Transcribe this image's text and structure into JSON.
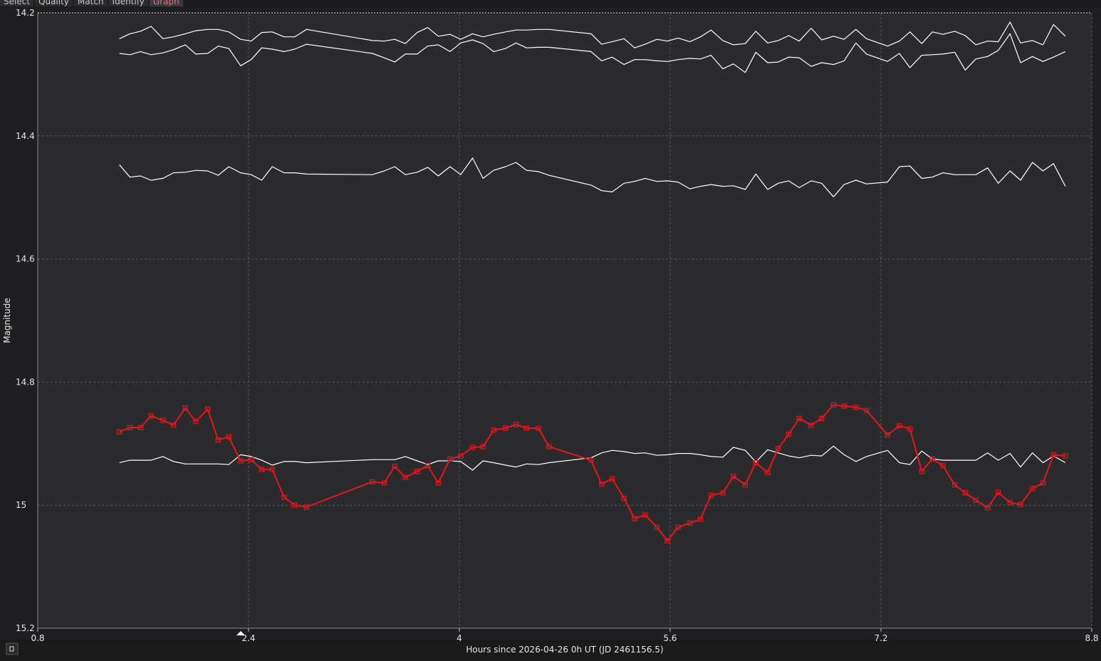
{
  "tabs": [
    "Select",
    "Quality",
    "Match",
    "Identify",
    "Graph"
  ],
  "chart_data": {
    "type": "line",
    "xlabel": "Hours since 2026-04-26 0h UT (JD 2461156.5)",
    "ylabel": "Magnitude",
    "xlim": [
      0.8,
      8.8
    ],
    "xticks": [
      0.8,
      2.4,
      4,
      5.6,
      7.2,
      8.8
    ],
    "ylim": [
      15.2,
      14.2
    ],
    "yticks": [
      14.2,
      14.4,
      14.6,
      14.8,
      15,
      15.2
    ],
    "grid": true,
    "x": [
      1.42,
      1.5,
      1.58,
      1.66,
      1.75,
      1.83,
      1.92,
      2.0,
      2.09,
      2.17,
      2.25,
      2.34,
      2.42,
      2.5,
      2.58,
      2.67,
      2.75,
      2.84,
      3.34,
      3.43,
      3.51,
      3.59,
      3.68,
      3.76,
      3.84,
      3.93,
      4.01,
      4.1,
      4.18,
      4.26,
      4.35,
      4.43,
      4.51,
      4.6,
      4.68,
      5.0,
      5.08,
      5.16,
      5.25,
      5.33,
      5.41,
      5.5,
      5.58,
      5.66,
      5.75,
      5.83,
      5.91,
      6.0,
      6.08,
      6.17,
      6.25,
      6.34,
      6.42,
      6.5,
      6.58,
      6.67,
      6.75,
      6.84,
      6.92,
      7.01,
      7.09,
      7.25,
      7.34,
      7.42,
      7.51,
      7.59,
      7.67,
      7.76,
      7.84,
      7.92,
      8.01,
      8.09,
      8.18,
      8.26,
      8.35,
      8.43,
      8.51,
      8.6
    ],
    "series": [
      {
        "color": "#ffffff",
        "values": [
          14.242,
          14.234,
          14.23,
          14.222,
          14.242,
          14.239,
          14.234,
          14.229,
          14.227,
          14.227,
          14.231,
          14.243,
          14.246,
          14.232,
          14.231,
          14.239,
          14.239,
          14.227,
          14.245,
          14.246,
          14.243,
          14.25,
          14.232,
          14.224,
          14.238,
          14.235,
          14.243,
          14.234,
          14.239,
          14.235,
          14.231,
          14.228,
          14.228,
          14.227,
          14.227,
          14.234,
          14.251,
          14.247,
          14.242,
          14.257,
          14.251,
          14.243,
          14.246,
          14.241,
          14.247,
          14.239,
          14.228,
          14.245,
          14.252,
          14.25,
          14.23,
          14.249,
          14.245,
          14.237,
          14.246,
          14.225,
          14.244,
          14.238,
          14.243,
          14.227,
          14.242,
          14.254,
          14.246,
          14.231,
          14.25,
          14.231,
          14.235,
          14.23,
          14.237,
          14.252,
          14.246,
          14.247,
          14.215,
          14.249,
          14.245,
          14.252,
          14.219,
          14.238
        ]
      },
      {
        "color": "#ffffff",
        "values": [
          14.266,
          14.268,
          14.263,
          14.268,
          14.265,
          14.26,
          14.252,
          14.267,
          14.266,
          14.254,
          14.258,
          14.286,
          14.276,
          14.257,
          14.259,
          14.263,
          14.259,
          14.251,
          14.266,
          14.273,
          14.28,
          14.267,
          14.267,
          14.254,
          14.252,
          14.263,
          14.249,
          14.244,
          14.25,
          14.263,
          14.258,
          14.249,
          14.257,
          14.256,
          14.256,
          14.263,
          14.278,
          14.272,
          14.284,
          14.276,
          14.276,
          14.278,
          14.279,
          14.276,
          14.274,
          14.275,
          14.269,
          14.291,
          14.283,
          14.297,
          14.264,
          14.281,
          14.28,
          14.272,
          14.273,
          14.287,
          14.281,
          14.284,
          14.278,
          14.249,
          14.267,
          14.279,
          14.266,
          14.289,
          14.269,
          14.268,
          14.267,
          14.264,
          14.293,
          14.275,
          14.271,
          14.261,
          14.234,
          14.281,
          14.271,
          14.279,
          14.272,
          14.263
        ]
      },
      {
        "color": "#ffffff",
        "values": [
          14.447,
          14.467,
          14.465,
          14.472,
          14.469,
          14.46,
          14.459,
          14.456,
          14.457,
          14.464,
          14.45,
          14.46,
          14.463,
          14.472,
          14.45,
          14.46,
          14.46,
          14.462,
          14.463,
          14.457,
          14.45,
          14.463,
          14.459,
          14.451,
          14.465,
          14.45,
          14.463,
          14.436,
          14.469,
          14.456,
          14.45,
          14.443,
          14.456,
          14.458,
          14.464,
          14.48,
          14.489,
          14.491,
          14.477,
          14.474,
          14.469,
          14.474,
          14.473,
          14.475,
          14.486,
          14.482,
          14.479,
          14.482,
          14.481,
          14.487,
          14.462,
          14.487,
          14.477,
          14.473,
          14.484,
          14.473,
          14.477,
          14.499,
          14.479,
          14.472,
          14.478,
          14.475,
          14.45,
          14.449,
          14.469,
          14.467,
          14.46,
          14.463,
          14.463,
          14.463,
          14.452,
          14.477,
          14.457,
          14.472,
          14.443,
          14.457,
          14.445,
          14.482
        ]
      },
      {
        "color": "#ffffff",
        "values": [
          14.931,
          14.927,
          14.927,
          14.927,
          14.921,
          14.929,
          14.933,
          14.933,
          14.933,
          14.933,
          14.934,
          14.918,
          14.921,
          14.927,
          14.935,
          14.929,
          14.929,
          14.931,
          14.926,
          14.926,
          14.926,
          14.921,
          14.928,
          14.934,
          14.928,
          14.928,
          14.929,
          14.943,
          14.928,
          14.931,
          14.935,
          14.938,
          14.933,
          14.934,
          14.931,
          14.923,
          14.915,
          14.911,
          14.913,
          14.916,
          14.915,
          14.919,
          14.918,
          14.916,
          14.916,
          14.918,
          14.921,
          14.922,
          14.906,
          14.911,
          14.93,
          14.91,
          14.915,
          14.92,
          14.923,
          14.919,
          14.92,
          14.904,
          14.918,
          14.929,
          14.921,
          14.911,
          14.931,
          14.934,
          14.912,
          14.925,
          14.927,
          14.927,
          14.927,
          14.927,
          14.915,
          14.927,
          14.916,
          14.938,
          14.915,
          14.931,
          14.92,
          14.931
        ]
      },
      {
        "color": "#e8141b",
        "marker": "square",
        "values": [
          14.881,
          14.874,
          14.874,
          14.855,
          14.862,
          14.87,
          14.842,
          14.864,
          14.844,
          14.894,
          14.889,
          14.928,
          14.926,
          14.942,
          14.942,
          14.987,
          15.0,
          15.003,
          14.962,
          14.964,
          14.937,
          14.955,
          14.945,
          14.936,
          14.964,
          14.925,
          14.92,
          14.906,
          14.905,
          14.878,
          14.875,
          14.869,
          14.875,
          14.875,
          14.905,
          14.927,
          14.966,
          14.957,
          14.989,
          15.022,
          15.016,
          15.036,
          15.058,
          15.036,
          15.029,
          15.023,
          14.984,
          14.98,
          14.953,
          14.967,
          14.931,
          14.947,
          14.908,
          14.885,
          14.859,
          14.87,
          14.859,
          14.837,
          14.839,
          14.841,
          14.846,
          14.886,
          14.871,
          14.876,
          14.945,
          14.925,
          14.936,
          14.967,
          14.98,
          14.992,
          15.004,
          14.979,
          14.996,
          14.999,
          14.973,
          14.964,
          14.918,
          14.92
        ]
      }
    ]
  }
}
